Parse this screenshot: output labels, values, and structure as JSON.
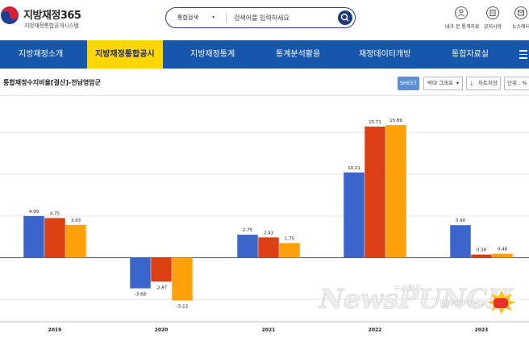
{
  "header": {
    "logo_title": "지방재정365",
    "logo_subtitle": "지방재정통합공개시스템",
    "search": {
      "type_label": "통합검색",
      "placeholder": "검색어를 입력하세요"
    },
    "utilities": [
      {
        "label": "내가 본 통계자료",
        "icon": "user-icon"
      },
      {
        "label": "공지사항",
        "icon": "notice-icon"
      },
      {
        "label": "뉴스레터",
        "icon": "newsletter-icon"
      }
    ]
  },
  "nav": {
    "items": [
      {
        "label": "지방재정소개"
      },
      {
        "label": "지방재정통합공시"
      },
      {
        "label": "지방재정통계"
      },
      {
        "label": "통계분석활용"
      },
      {
        "label": "재정데이터개방"
      },
      {
        "label": "통합자료실"
      }
    ],
    "active_index": 1
  },
  "toolbar": {
    "title": "통합재정수지비율[결산]-전남영암군",
    "sheet_label": "SHEET",
    "chart_select": "막대 그래프",
    "save_label": "차트저장",
    "unit_label": "단위 : %"
  },
  "colors": {
    "nav_bg": "#1656ab",
    "nav_active_bg": "#ffd600",
    "series_1": "#3a66cc",
    "series_2": "#dc3f14",
    "series_3": "#ff9f0a"
  },
  "chart_data": {
    "type": "bar",
    "categories": [
      "2019",
      "2020",
      "2021",
      "2022",
      "2023"
    ],
    "series": [
      {
        "values": [
          4.99,
          -3.68,
          2.75,
          10.21,
          3.9
        ]
      },
      {
        "values": [
          4.75,
          -2.87,
          2.43,
          15.71,
          0.38
        ]
      },
      {
        "values": [
          3.93,
          -5.13,
          1.75,
          15.89,
          0.48
        ]
      }
    ],
    "ylim": [
      -7,
      19
    ],
    "grid": true
  },
  "watermark": {
    "text": "NewsPUNCH",
    "small_text": "뉴스펀치",
    "badge_text": "NEWSPUNCH"
  }
}
